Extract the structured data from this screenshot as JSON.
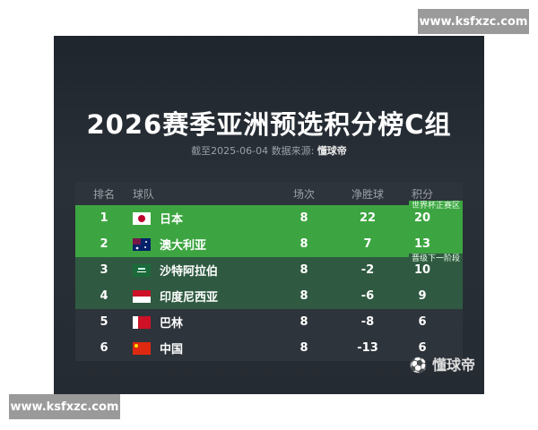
{
  "watermark": "www.ksfxzc.com",
  "title": "2026赛季亚洲预选积分榜C组",
  "subtitle_prefix": "截至2025-06-04 数据来源:",
  "subtitle_source": "懂球帝",
  "headers": {
    "rank": "排名",
    "team": "球队",
    "played": "场次",
    "gd": "净胜球",
    "points": "积分"
  },
  "zones": {
    "qualify": "世界杯正赛区",
    "next": "晋级下一阶段"
  },
  "colors": {
    "qualify": "#3ca541",
    "next": "#2f5a41"
  },
  "rows": [
    {
      "rank": "1",
      "team": "日本",
      "flag": "japan-flag",
      "played": "8",
      "gd": "22",
      "points": "20"
    },
    {
      "rank": "2",
      "team": "澳大利亚",
      "flag": "australia-flag",
      "played": "8",
      "gd": "7",
      "points": "13"
    },
    {
      "rank": "3",
      "team": "沙特阿拉伯",
      "flag": "saudi-arabia-flag",
      "played": "8",
      "gd": "-2",
      "points": "10"
    },
    {
      "rank": "4",
      "team": "印度尼西亚",
      "flag": "indonesia-flag",
      "played": "8",
      "gd": "-6",
      "points": "9"
    },
    {
      "rank": "5",
      "team": "巴林",
      "flag": "bahrain-flag",
      "played": "8",
      "gd": "-8",
      "points": "6"
    },
    {
      "rank": "6",
      "team": "中国",
      "flag": "china-flag",
      "played": "8",
      "gd": "-13",
      "points": "6"
    }
  ],
  "logo": "懂球帝"
}
